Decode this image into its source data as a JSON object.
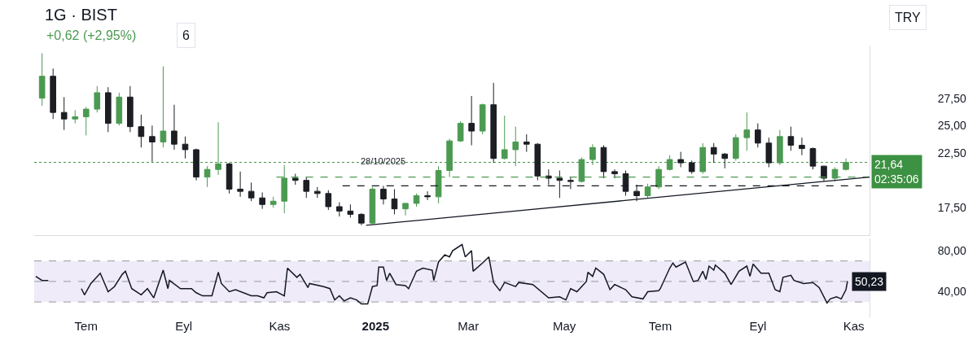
{
  "chart_data": [
    {
      "type": "candlestick",
      "title": "1G · BIST",
      "subtitle": "+0,62 (+2,95%)",
      "x": [
        "2024-06-03",
        "2024-06-10",
        "2024-06-17",
        "2024-06-24",
        "2024-07-01",
        "2024-07-08",
        "2024-07-15",
        "2024-07-22",
        "2024-07-29",
        "2024-08-05",
        "2024-08-12",
        "2024-08-19",
        "2024-08-26",
        "2024-09-02",
        "2024-09-09",
        "2024-09-16",
        "2024-09-23",
        "2024-09-30",
        "2024-10-07",
        "2024-10-14",
        "2024-10-21",
        "2024-10-28",
        "2024-11-04",
        "2024-11-11",
        "2024-11-18",
        "2024-11-25",
        "2024-12-02",
        "2024-12-09",
        "2024-12-16",
        "2024-12-23",
        "2024-12-30",
        "2025-01-06",
        "2025-01-13",
        "2025-01-20",
        "2025-01-27",
        "2025-02-03",
        "2025-02-10",
        "2025-02-17",
        "2025-02-24",
        "2025-03-03",
        "2025-03-10",
        "2025-03-17",
        "2025-03-24",
        "2025-03-31",
        "2025-04-07",
        "2025-04-14",
        "2025-04-21",
        "2025-04-28",
        "2025-05-05",
        "2025-05-12",
        "2025-05-19",
        "2025-05-26",
        "2025-06-02",
        "2025-06-09",
        "2025-06-16",
        "2025-06-23",
        "2025-06-30",
        "2025-07-07",
        "2025-07-14",
        "2025-07-21",
        "2025-07-28",
        "2025-08-04",
        "2025-08-11",
        "2025-08-18",
        "2025-08-25",
        "2025-09-01",
        "2025-09-08",
        "2025-09-15",
        "2025-09-22",
        "2025-09-29",
        "2025-10-06",
        "2025-10-13",
        "2025-10-20",
        "2025-10-27"
      ],
      "ohlc": [
        [
          27.5,
          31.6,
          26.8,
          29.5
        ],
        [
          29.5,
          30.2,
          25.6,
          26.2
        ],
        [
          26.2,
          27.6,
          24.6,
          25.6
        ],
        [
          25.6,
          26.4,
          25.2,
          25.8
        ],
        [
          25.8,
          26.7,
          24.1,
          26.5
        ],
        [
          26.5,
          28.6,
          26.2,
          28.0
        ],
        [
          28.0,
          28.5,
          24.4,
          25.2
        ],
        [
          25.2,
          28.0,
          25.0,
          27.6
        ],
        [
          27.6,
          28.6,
          24.4,
          24.9
        ],
        [
          24.9,
          26.0,
          23.0,
          24.0
        ],
        [
          24.0,
          25.0,
          21.7,
          23.5
        ],
        [
          23.5,
          30.4,
          23.0,
          24.5
        ],
        [
          24.5,
          26.9,
          22.8,
          23.3
        ],
        [
          23.3,
          24.0,
          22.0,
          22.8
        ],
        [
          22.8,
          22.9,
          20.0,
          20.3
        ],
        [
          20.3,
          21.3,
          19.4,
          21.0
        ],
        [
          21.0,
          25.3,
          20.5,
          21.5
        ],
        [
          21.5,
          21.6,
          18.8,
          19.2
        ],
        [
          19.2,
          20.8,
          18.5,
          19.0
        ],
        [
          19.0,
          19.8,
          18.1,
          18.4
        ],
        [
          18.4,
          18.9,
          17.4,
          17.8
        ],
        [
          17.8,
          18.5,
          17.5,
          18.1
        ],
        [
          18.1,
          21.4,
          17.0,
          20.2
        ],
        [
          20.2,
          20.6,
          19.6,
          20.0
        ],
        [
          20.0,
          20.3,
          18.4,
          19.0
        ],
        [
          19.0,
          19.4,
          18.4,
          18.8
        ],
        [
          18.8,
          19.1,
          17.3,
          17.6
        ],
        [
          17.6,
          18.0,
          16.7,
          17.2
        ],
        [
          17.2,
          17.8,
          16.6,
          16.9
        ],
        [
          16.9,
          17.0,
          15.9,
          16.1
        ],
        [
          16.1,
          19.4,
          16.0,
          19.2
        ],
        [
          19.2,
          19.5,
          17.8,
          18.3
        ],
        [
          18.3,
          19.2,
          16.9,
          17.4
        ],
        [
          17.4,
          17.9,
          16.8,
          17.9
        ],
        [
          17.9,
          18.8,
          17.6,
          18.6
        ],
        [
          18.6,
          19.0,
          18.2,
          18.5
        ],
        [
          18.5,
          21.3,
          17.9,
          20.9
        ],
        [
          20.9,
          23.8,
          20.3,
          23.6
        ],
        [
          23.6,
          25.4,
          23.5,
          25.2
        ],
        [
          25.2,
          27.7,
          23.2,
          24.5
        ],
        [
          24.5,
          27.0,
          24.2,
          26.9
        ],
        [
          26.9,
          28.9,
          21.6,
          22.0
        ],
        [
          22.0,
          25.9,
          21.9,
          22.8
        ],
        [
          22.8,
          24.9,
          21.3,
          23.5
        ],
        [
          23.5,
          24.2,
          22.6,
          23.3
        ],
        [
          23.3,
          23.4,
          20.0,
          20.4
        ],
        [
          20.4,
          21.0,
          19.6,
          20.2
        ],
        [
          20.2,
          20.9,
          18.4,
          20.0
        ],
        [
          20.0,
          20.3,
          19.2,
          19.9
        ],
        [
          19.9,
          22.1,
          19.8,
          21.9
        ],
        [
          21.9,
          23.3,
          21.4,
          23.0
        ],
        [
          23.0,
          23.2,
          20.2,
          20.8
        ],
        [
          20.8,
          21.0,
          20.2,
          20.6
        ],
        [
          20.6,
          20.9,
          18.6,
          19.0
        ],
        [
          19.0,
          19.6,
          18.1,
          18.6
        ],
        [
          18.6,
          19.7,
          18.4,
          19.4
        ],
        [
          19.4,
          21.3,
          19.2,
          21.0
        ],
        [
          21.0,
          22.3,
          20.9,
          21.9
        ],
        [
          21.9,
          22.6,
          21.2,
          21.6
        ],
        [
          21.6,
          21.8,
          20.6,
          20.8
        ],
        [
          20.8,
          23.4,
          20.6,
          23.0
        ],
        [
          23.0,
          23.4,
          21.6,
          22.4
        ],
        [
          22.4,
          22.5,
          21.1,
          22.0
        ],
        [
          22.0,
          24.2,
          21.8,
          23.9
        ],
        [
          23.9,
          26.2,
          22.7,
          24.6
        ],
        [
          24.6,
          25.2,
          23.0,
          23.4
        ],
        [
          23.4,
          23.9,
          21.2,
          21.6
        ],
        [
          21.6,
          24.6,
          21.4,
          24.0
        ],
        [
          24.0,
          24.9,
          22.7,
          23.2
        ],
        [
          23.2,
          23.9,
          22.3,
          22.9
        ],
        [
          22.9,
          23.0,
          21.0,
          21.3
        ],
        [
          21.3,
          21.3,
          19.9,
          20.2
        ],
        [
          20.2,
          21.2,
          19.9,
          21.0
        ],
        [
          21.0,
          22.0,
          20.9,
          21.64
        ]
      ],
      "colors": [
        "#4c9a52",
        "#1c1e24",
        "#1c1e24",
        "#4c9a52",
        "#4c9a52",
        "#4c9a52",
        "#1c1e24",
        "#4c9a52",
        "#1c1e24",
        "#1c1e24",
        "#1c1e24",
        "#4c9a52",
        "#1c1e24",
        "#1c1e24",
        "#1c1e24",
        "#4c9a52",
        "#4c9a52",
        "#1c1e24",
        "#1c1e24",
        "#1c1e24",
        "#1c1e24",
        "#4c9a52",
        "#4c9a52",
        "#1c1e24",
        "#1c1e24",
        "#1c1e24",
        "#1c1e24",
        "#1c1e24",
        "#1c1e24",
        "#1c1e24",
        "#4c9a52",
        "#1c1e24",
        "#1c1e24",
        "#4c9a52",
        "#4c9a52",
        "#1c1e24",
        "#4c9a52",
        "#4c9a52",
        "#4c9a52",
        "#1c1e24",
        "#4c9a52",
        "#1c1e24",
        "#4c9a52",
        "#4c9a52",
        "#1c1e24",
        "#1c1e24",
        "#1c1e24",
        "#1c1e24",
        "#1c1e24",
        "#4c9a52",
        "#4c9a52",
        "#1c1e24",
        "#1c1e24",
        "#1c1e24",
        "#1c1e24",
        "#4c9a52",
        "#4c9a52",
        "#4c9a52",
        "#1c1e24",
        "#1c1e24",
        "#4c9a52",
        "#1c1e24",
        "#1c1e24",
        "#4c9a52",
        "#4c9a52",
        "#1c1e24",
        "#1c1e24",
        "#4c9a52",
        "#1c1e24",
        "#1c1e24",
        "#1c1e24",
        "#1c1e24",
        "#4c9a52",
        "#4c9a52"
      ],
      "series": [
        {
          "type": "line",
          "x": [
            "2024-10-30",
            "2025-11-11"
          ],
          "values": [
            20.3,
            20.3
          ],
          "color": "#4c9a52",
          "line_style": "dashed"
        },
        {
          "type": "line",
          "x": [
            "2024-12-11",
            "2025-11-06"
          ],
          "values": [
            19.5,
            19.5
          ],
          "color": "#131722",
          "line_style": "dashed"
        },
        {
          "type": "line",
          "x": [
            "2024-12-26",
            "2025-11-11"
          ],
          "values": [
            15.9,
            20.3
          ],
          "color": "#131722",
          "line_style": "solid"
        }
      ],
      "xlim": [
        "2024-05-29",
        "2025-11-11"
      ],
      "ylim": [
        15,
        32.3
      ],
      "yticks": [
        {
          "value": 17.5,
          "label": "17,50"
        },
        {
          "value": 22.5,
          "label": "22,50"
        },
        {
          "value": 25,
          "label": "25,00"
        },
        {
          "value": 27.5,
          "label": "27,50"
        }
      ],
      "tick_labels": "y",
      "ref_lines": [
        {
          "axis": "y",
          "value": 21.64,
          "label": "21,64\n02:35:06",
          "color": "#3d9142",
          "line_style": "dotted"
        }
      ],
      "annotations": [
        "28/10/2025",
        "TRY",
        "6"
      ]
    },
    {
      "type": "line",
      "x": [
        "2024-05-30",
        "2024-06-03",
        "2024-06-07",
        "2024-06-17",
        "2024-06-28",
        "2024-06-30",
        "2024-07-04",
        "2024-07-10",
        "2024-07-15",
        "2024-07-19",
        "2024-07-24",
        "2024-07-26",
        "2024-07-30",
        "2024-08-05",
        "2024-08-09",
        "2024-08-13",
        "2024-08-19",
        "2024-08-22",
        "2024-08-23",
        "2024-08-30",
        "2024-09-06",
        "2024-09-09",
        "2024-09-13",
        "2024-09-19",
        "2024-09-23",
        "2024-09-25",
        "2024-09-30",
        "2024-10-04",
        "2024-10-14",
        "2024-10-18",
        "2024-10-22",
        "2024-10-24",
        "2024-10-30",
        "2024-11-04",
        "2024-11-06",
        "2024-11-12",
        "2024-11-14",
        "2024-11-19",
        "2024-11-20",
        "2024-11-29",
        "2024-12-03",
        "2024-12-06",
        "2024-12-09",
        "2024-12-12",
        "2024-12-16",
        "2024-12-20",
        "2024-12-23",
        "2024-12-27",
        "2024-12-30",
        "2025-01-02",
        "2025-01-03",
        "2025-01-06",
        "2025-01-08",
        "2025-01-10",
        "2025-01-14",
        "2025-01-20",
        "2025-01-22",
        "2025-01-27",
        "2025-01-31",
        "2025-02-06",
        "2025-02-07",
        "2025-02-10",
        "2025-02-14",
        "2025-02-17",
        "2025-02-19",
        "2025-02-25",
        "2025-02-27",
        "2025-03-03",
        "2025-03-04",
        "2025-03-10",
        "2025-03-14",
        "2025-03-17",
        "2025-03-21",
        "2025-03-24",
        "2025-03-31",
        "2025-04-02",
        "2025-04-11",
        "2025-04-21",
        "2025-04-28",
        "2025-05-02",
        "2025-05-05",
        "2025-05-09",
        "2025-05-15",
        "2025-05-16",
        "2025-05-19",
        "2025-05-21",
        "2025-05-26",
        "2025-05-30",
        "2025-06-02",
        "2025-06-09",
        "2025-06-13",
        "2025-06-20",
        "2025-06-23",
        "2025-06-30",
        "2025-07-01",
        "2025-07-07",
        "2025-07-09",
        "2025-07-11",
        "2025-07-17",
        "2025-07-22",
        "2025-07-25",
        "2025-07-28",
        "2025-07-30",
        "2025-08-01",
        "2025-08-04",
        "2025-08-05",
        "2025-08-11",
        "2025-08-15",
        "2025-08-20",
        "2025-08-25",
        "2025-08-27",
        "2025-08-29",
        "2025-09-03",
        "2025-09-08",
        "2025-09-12",
        "2025-09-15",
        "2025-09-17",
        "2025-09-22",
        "2025-09-24",
        "2025-09-30",
        "2025-10-06",
        "2025-10-10",
        "2025-10-15",
        "2025-10-17",
        "2025-10-21",
        "2025-10-24",
        "2025-10-27",
        "2025-10-28"
      ],
      "values": [
        55,
        51,
        51,
        null,
        43,
        37,
        48,
        58,
        40,
        45,
        57,
        60,
        43,
        37,
        43,
        34,
        61,
        43,
        51,
        43,
        43,
        39,
        36,
        36,
        59,
        48,
        40,
        42,
        36,
        36,
        34,
        39,
        40,
        36,
        63,
        54,
        57,
        44,
        48,
        45,
        43,
        32,
        36,
        31,
        34,
        32,
        28,
        28,
        45,
        46,
        64,
        64,
        51,
        58,
        47,
        46,
        43,
        60,
        63,
        61,
        51,
        69,
        76,
        74,
        80,
        86,
        74,
        80,
        60,
        68,
        74,
        49,
        41,
        49,
        45,
        49,
        47,
        34,
        35,
        32,
        43,
        40,
        50,
        59,
        55,
        63,
        57,
        42,
        47,
        42,
        35,
        33,
        40,
        41,
        43,
        63,
        68,
        64,
        69,
        50,
        51,
        60,
        52,
        65,
        61,
        66,
        58,
        47,
        60,
        65,
        55,
        67,
        58,
        58,
        42,
        40,
        54,
        56,
        51,
        48,
        49,
        44,
        29,
        33,
        35,
        33,
        42,
        50.23
      ],
      "color": "#131722",
      "value_labels": [
        null,
        null,
        null,
        null,
        null,
        null,
        null,
        null,
        null,
        null,
        null,
        null,
        null,
        null,
        null,
        null,
        null,
        null,
        null,
        null,
        null,
        null,
        null,
        null,
        null,
        null,
        null,
        null,
        null,
        null,
        null,
        null,
        null,
        null,
        null,
        null,
        null,
        null,
        null,
        null,
        null,
        null,
        null,
        null,
        null,
        null,
        null,
        null,
        null,
        null,
        null,
        null,
        null,
        null,
        null,
        null,
        null,
        null,
        null,
        null,
        null,
        null,
        null,
        null,
        null,
        null,
        null,
        null,
        null,
        null,
        null,
        null,
        null,
        null,
        null,
        null,
        null,
        null,
        null,
        null,
        null,
        null,
        null,
        null,
        null,
        null,
        null,
        null,
        null,
        null,
        null,
        null,
        null,
        null,
        null,
        null,
        null,
        null,
        null,
        null,
        null,
        null,
        null,
        null,
        null,
        null,
        null,
        null,
        null,
        null,
        null,
        null,
        null,
        null,
        null,
        null,
        null,
        null,
        null,
        null,
        null,
        null,
        null,
        null,
        null,
        null,
        null,
        "50,23"
      ],
      "xlim": [
        "2024-05-29",
        "2025-11-11"
      ],
      "ylim": [
        15,
        92
      ],
      "xticks": [
        {
          "value": "2024-07-01",
          "label": "Tem"
        },
        {
          "value": "2024-09-01",
          "label": "Eyl"
        },
        {
          "value": "2024-11-01",
          "label": "Kas"
        },
        {
          "value": "2025-01-01",
          "label": "2025"
        },
        {
          "value": "2025-03-01",
          "label": "Mar"
        },
        {
          "value": "2025-05-01",
          "label": "May"
        },
        {
          "value": "2025-07-01",
          "label": "Tem"
        },
        {
          "value": "2025-09-01",
          "label": "Eyl"
        },
        {
          "value": "2025-11-01",
          "label": "Kas"
        }
      ],
      "yticks": [
        {
          "value": 80,
          "label": "80,00"
        },
        {
          "value": 40,
          "label": "40,00"
        }
      ],
      "bands": [
        {
          "axis": "y",
          "from": 30,
          "to": 70,
          "color": "#efebf8"
        }
      ],
      "ref_lines": [
        {
          "axis": "y",
          "value": 70,
          "color": "#9598a1",
          "line_style": "dashed"
        },
        {
          "axis": "y",
          "value": 50,
          "color": "#9598a1",
          "line_style": "dashed"
        },
        {
          "axis": "y",
          "value": 30,
          "color": "#9598a1",
          "line_style": "dashed"
        }
      ]
    }
  ]
}
